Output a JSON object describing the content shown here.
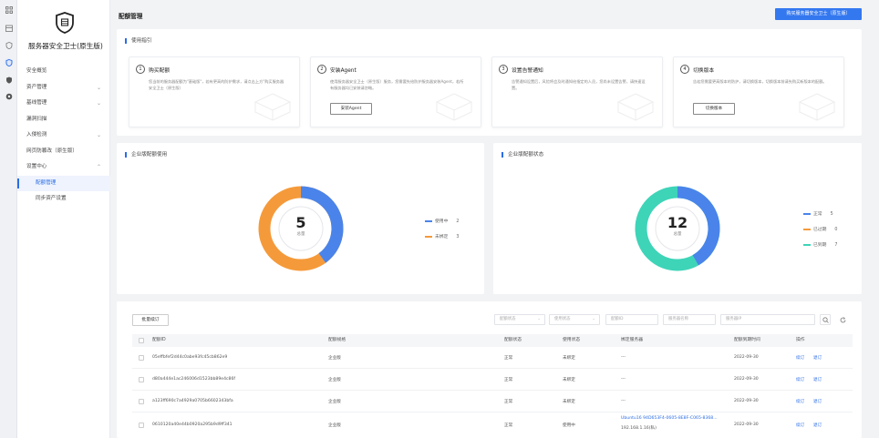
{
  "page": {
    "title": "配额管理",
    "buy_button": "购买服务器安全卫士（原生版）"
  },
  "sidebar": {
    "product_name": "服务器安全卫士(原生版)",
    "items": [
      {
        "label": "安全概览"
      },
      {
        "label": "资产管理"
      },
      {
        "label": "基线管理"
      },
      {
        "label": "漏洞扫描"
      },
      {
        "label": "入侵检测"
      },
      {
        "label": "网页防篡改（原生版）"
      },
      {
        "label": "设置中心"
      },
      {
        "label": "配额管理"
      },
      {
        "label": "同步资产设置"
      }
    ]
  },
  "guide": {
    "title": "使用指引",
    "steps": [
      {
        "num": "1",
        "title": "购买配额",
        "desc": "您当前的服务器配额为\"基础版\"，若有更高的防护需求，请点击上方\"购买服务器安全卫士（原生版）",
        "button": ""
      },
      {
        "num": "2",
        "title": "安装Agent",
        "desc": "使用服务器安全卫士（原生版）服务，您需要先给防护服务器安装Agent，若所有服务器均已安装请忽略。",
        "button": "安装Agent"
      },
      {
        "num": "3",
        "title": "设置告警通知",
        "desc": "告警通知设置后，风险将会及时通知给指定的人员，您尚未设置告警，请快速设置。",
        "button": ""
      },
      {
        "num": "4",
        "title": "切换版本",
        "desc": "告若您需要更高版本的防护，请切换版本，切换版本前请先购买新版本的配额。",
        "button": "切换版本"
      }
    ]
  },
  "usage_panel": {
    "title": "企业版配额使用",
    "total": "5",
    "total_label": "总量",
    "legend": [
      {
        "label": "使用中",
        "value": "2",
        "color": "#4a84ea"
      },
      {
        "label": "未绑定",
        "value": "3",
        "color": "#f59a3a"
      }
    ]
  },
  "status_panel": {
    "title": "企业版配额状态",
    "total": "12",
    "total_label": "总量",
    "legend": [
      {
        "label": "正常",
        "value": "5",
        "color": "#4a84ea"
      },
      {
        "label": "已过期",
        "value": "0",
        "color": "#f59a3a"
      },
      {
        "label": "已到期",
        "value": "7",
        "color": "#3ed4b8"
      }
    ]
  },
  "table": {
    "batch_button": "批量续订",
    "filters": [
      {
        "placeholder": "配额状态"
      },
      {
        "placeholder": "使用状态"
      },
      {
        "placeholder": "配额ID"
      },
      {
        "placeholder": "服务器名称"
      },
      {
        "placeholder": "服务器IP"
      }
    ],
    "columns": [
      "配额ID",
      "配额规格",
      "配额状态",
      "使用状态",
      "绑定服务器",
      "配额到期时间",
      "操作"
    ],
    "rows": [
      {
        "id": "05effbfef2d44c0abe93fc45cb862e9",
        "spec": "企业版",
        "status": "正常",
        "use": "未绑定",
        "server": "---",
        "server2": "",
        "expire": "2022-09-30",
        "op1": "续订",
        "op2": "退订"
      },
      {
        "id": "d80a444e1ac246006d1523bb89e4c86f",
        "spec": "企业版",
        "status": "正常",
        "use": "未绑定",
        "server": "---",
        "server2": "",
        "expire": "2022-09-30",
        "op1": "续订",
        "op2": "退订"
      },
      {
        "id": "a123ff690c7a4929a0705b6602343bfa",
        "spec": "企业版",
        "status": "正常",
        "use": "未绑定",
        "server": "---",
        "server2": "",
        "expire": "2022-09-30",
        "op1": "续订",
        "op2": "退订"
      },
      {
        "id": "0610120a40e44b0920a295b9d9ff341",
        "spec": "企业版",
        "status": "正常",
        "use": "使用中",
        "server": "Ubuntu16 94D653F4-0605-8E8F-C065-8368...",
        "server2": "192.168.1.16(私)",
        "expire": "2022-09-30",
        "op1": "续订",
        "op2": "退订"
      }
    ]
  }
}
